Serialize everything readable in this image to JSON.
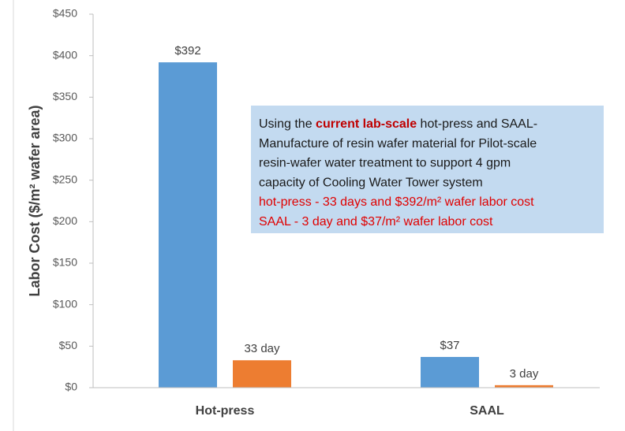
{
  "chart_data": {
    "type": "bar",
    "y_label": "Labor Cost ($/m² wafer area)",
    "categories": [
      "Hot-press",
      "SAAL"
    ],
    "series": [
      {
        "color": "#5b9bd5",
        "values": [
          392,
          37
        ],
        "value_labels": [
          "$392",
          "$37"
        ]
      },
      {
        "color": "#ed7d31",
        "values": [
          33,
          3
        ],
        "value_labels": [
          "33  day",
          "3  day"
        ]
      }
    ],
    "ylim": [
      0,
      450
    ],
    "yticks": [
      {
        "value": 0,
        "label": "$0"
      },
      {
        "value": 50,
        "label": "$50"
      },
      {
        "value": 100,
        "label": "$100"
      },
      {
        "value": 150,
        "label": "$150"
      },
      {
        "value": 200,
        "label": "$200"
      },
      {
        "value": 250,
        "label": "$250"
      },
      {
        "value": 300,
        "label": "$300"
      },
      {
        "value": 350,
        "label": "$350"
      },
      {
        "value": 400,
        "label": "$400"
      },
      {
        "value": 450,
        "label": "$450"
      }
    ],
    "grid": false,
    "annotation": {
      "lines": [
        [
          "Using the ",
          "current lab-scale",
          " hot-press and SAAL-"
        ],
        [
          "Manufacture of resin wafer material for Pilot-scale"
        ],
        [
          "resin-wafer water treatment to support 4 gpm"
        ],
        [
          "capacity of Cooling Water Tower system"
        ],
        [
          "hot-press - 33 days and $392/m² wafer labor cost"
        ],
        [
          "SAAL - 3 day and $37/m² wafer labor cost"
        ]
      ]
    }
  }
}
